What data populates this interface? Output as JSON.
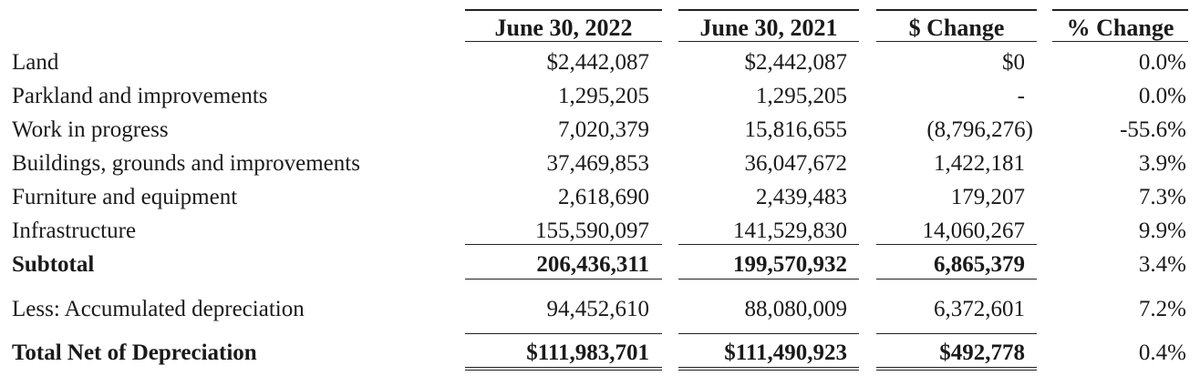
{
  "columns": [
    "June 30, 2022",
    "June 30, 2021",
    "$ Change",
    "% Change"
  ],
  "rows": [
    {
      "label": "Land",
      "v2022": "$2,442,087",
      "v2021": "$2,442,087",
      "change": "$0",
      "pct": "0.0%"
    },
    {
      "label": "Parkland and improvements",
      "v2022": "1,295,205",
      "v2021": "1,295,205",
      "change": "-",
      "pct": "0.0%"
    },
    {
      "label": "Work in progress",
      "v2022": "7,020,379",
      "v2021": "15,816,655",
      "change": "(8,796,276)",
      "pct": "-55.6%"
    },
    {
      "label": "Buildings, grounds and improvements",
      "v2022": "37,469,853",
      "v2021": "36,047,672",
      "change": "1,422,181",
      "pct": "3.9%"
    },
    {
      "label": "Furniture and equipment",
      "v2022": "2,618,690",
      "v2021": "2,439,483",
      "change": "179,207",
      "pct": "7.3%"
    },
    {
      "label": "Infrastructure",
      "v2022": "155,590,097",
      "v2021": "141,529,830",
      "change": "14,060,267",
      "pct": "9.9%"
    }
  ],
  "subtotal": {
    "label": "Subtotal",
    "v2022": "206,436,311",
    "v2021": "199,570,932",
    "change": "6,865,379",
    "pct": "3.4%"
  },
  "depreciation": {
    "label": "Less: Accumulated depreciation",
    "v2022": "94,452,610",
    "v2021": "88,080,009",
    "change": "6,372,601",
    "pct": "7.2%"
  },
  "total": {
    "label": "Total Net of Depreciation",
    "v2022": "$111,983,701",
    "v2021": "$111,490,923",
    "change": "$492,778",
    "pct": "0.4%"
  }
}
